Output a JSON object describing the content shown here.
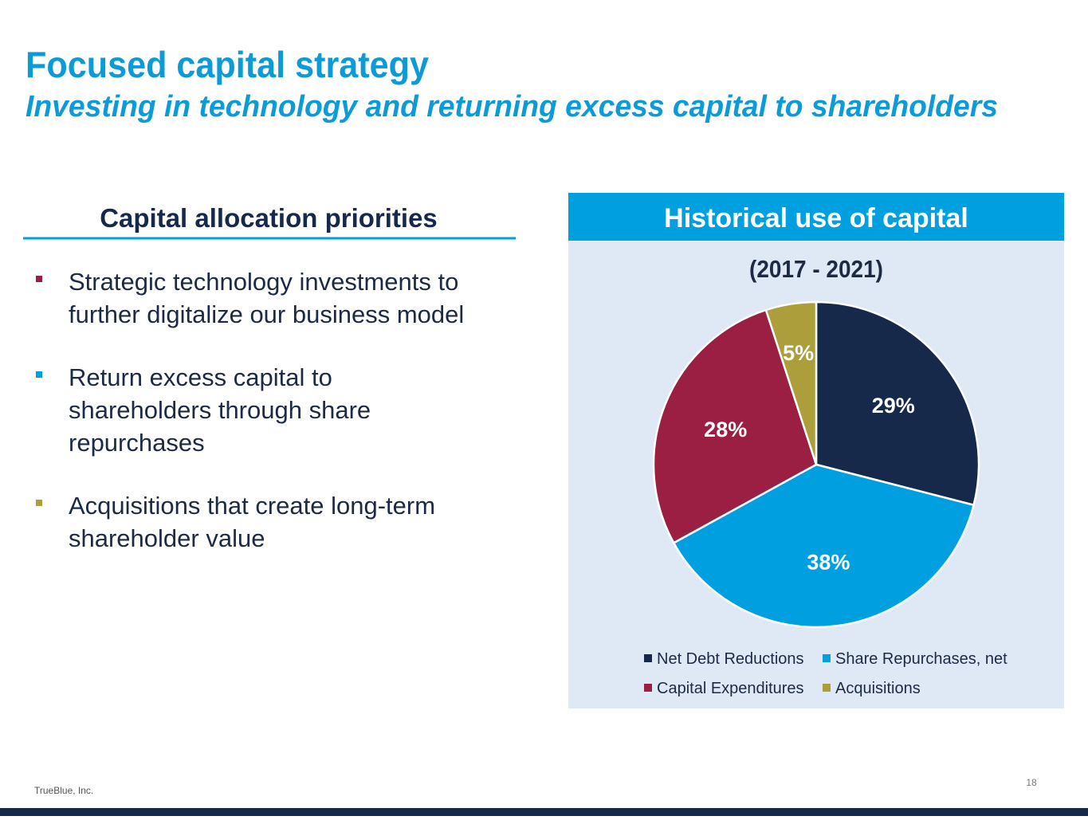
{
  "header": {
    "title": "Focused capital strategy",
    "subtitle": "Investing in technology and returning excess capital to shareholders"
  },
  "left": {
    "heading": "Capital allocation priorities",
    "bullets": [
      [
        "Strategic technology investments to",
        "further digitalize our business model"
      ],
      [
        "Return excess capital to",
        "shareholders through share",
        "repurchases"
      ],
      [
        "Acquisitions that create long-term",
        "shareholder value"
      ]
    ]
  },
  "panel": {
    "heading": "Historical use of capital"
  },
  "chart_data": {
    "type": "pie",
    "subtitle": "(2017 - 2021)",
    "categories": [
      "Net Debt Reductions",
      "Share Repurchases, net",
      "Capital Expenditures",
      "Acquisitions"
    ],
    "values": [
      29,
      38,
      28,
      5
    ],
    "value_labels": [
      "29%",
      "38%",
      "28%",
      "5%"
    ],
    "colors": [
      "#16294a",
      "#009fdf",
      "#9b1f42",
      "#ad9e3c"
    ]
  },
  "footer": {
    "company": "TrueBlue, Inc.",
    "page": 18
  }
}
